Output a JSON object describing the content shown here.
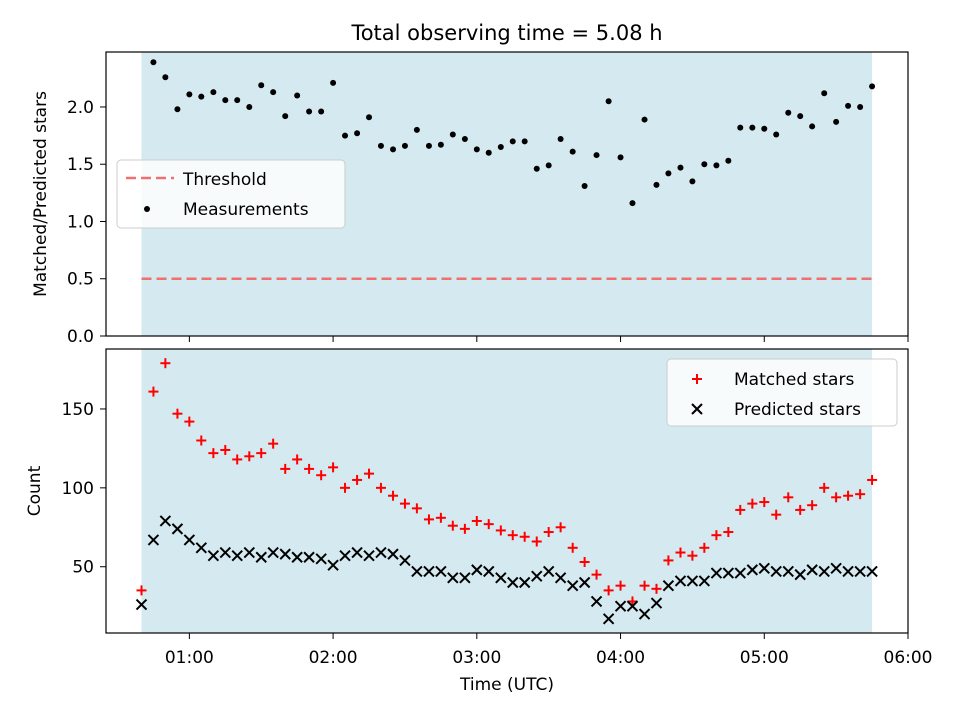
{
  "title": "Total observing time = 5.08 h",
  "colors": {
    "shade": "#d4eaf0",
    "threshold": "#f07070",
    "measurements": "#000000",
    "matched": "#ff0000",
    "predicted": "#000000"
  },
  "chart_data": [
    {
      "type": "scatter",
      "ylabel": "Matched/Predicted stars",
      "xlim": [
        0.42,
        6.0
      ],
      "ylim": [
        0.0,
        2.48
      ],
      "yticks": [
        0.0,
        0.5,
        1.0,
        1.5,
        2.0
      ],
      "ytick_labels": [
        "0.0",
        "0.5",
        "1.0",
        "1.5",
        "2.0"
      ],
      "shaded_span": [
        0.667,
        5.75
      ],
      "threshold": {
        "name": "Threshold",
        "y": 0.5
      },
      "legend": [
        "Threshold",
        "Measurements"
      ],
      "legend_position": "center-left",
      "series": [
        {
          "name": "Measurements",
          "x": [
            0.75,
            0.833,
            0.917,
            1.0,
            1.083,
            1.167,
            1.25,
            1.333,
            1.417,
            1.5,
            1.583,
            1.667,
            1.75,
            1.833,
            1.917,
            2.0,
            2.083,
            2.167,
            2.25,
            2.333,
            2.417,
            2.5,
            2.583,
            2.667,
            2.75,
            2.833,
            2.917,
            3.0,
            3.083,
            3.167,
            3.25,
            3.333,
            3.417,
            3.5,
            3.583,
            3.667,
            3.75,
            3.833,
            3.917,
            4.0,
            4.083,
            4.167,
            4.25,
            4.333,
            4.417,
            4.5,
            4.583,
            4.667,
            4.75,
            4.833,
            4.917,
            5.0,
            5.083,
            5.167,
            5.25,
            5.333,
            5.417,
            5.5,
            5.583,
            5.667,
            5.75
          ],
          "y": [
            2.39,
            2.26,
            1.98,
            2.11,
            2.09,
            2.13,
            2.06,
            2.06,
            2.0,
            2.19,
            2.13,
            1.92,
            2.1,
            1.96,
            1.96,
            2.21,
            1.75,
            1.77,
            1.91,
            1.66,
            1.63,
            1.66,
            1.8,
            1.66,
            1.67,
            1.76,
            1.72,
            1.63,
            1.6,
            1.65,
            1.7,
            1.7,
            1.46,
            1.49,
            1.72,
            1.61,
            1.31,
            1.58,
            2.05,
            1.56,
            1.16,
            1.89,
            1.32,
            1.42,
            1.47,
            1.35,
            1.5,
            1.49,
            1.53,
            1.82,
            1.82,
            1.81,
            1.76,
            1.95,
            1.92,
            1.83,
            2.12,
            1.87,
            2.01,
            2.0,
            2.18
          ]
        }
      ]
    },
    {
      "type": "scatter",
      "xlabel": "Time (UTC)",
      "ylabel": "Count",
      "xlim": [
        0.42,
        6.0
      ],
      "ylim": [
        8,
        188
      ],
      "yticks": [
        50,
        100,
        150
      ],
      "ytick_labels": [
        "50",
        "100",
        "150"
      ],
      "xticks": [
        1,
        2,
        3,
        4,
        5,
        6
      ],
      "xtick_labels": [
        "01:00",
        "02:00",
        "03:00",
        "04:00",
        "05:00",
        "06:00"
      ],
      "shaded_span": [
        0.667,
        5.75
      ],
      "legend": [
        "Matched stars",
        "Predicted stars"
      ],
      "legend_position": "top-right",
      "series": [
        {
          "name": "Matched stars",
          "marker": "plus",
          "x": [
            0.667,
            0.75,
            0.833,
            0.917,
            1.0,
            1.083,
            1.167,
            1.25,
            1.333,
            1.417,
            1.5,
            1.583,
            1.667,
            1.75,
            1.833,
            1.917,
            2.0,
            2.083,
            2.167,
            2.25,
            2.333,
            2.417,
            2.5,
            2.583,
            2.667,
            2.75,
            2.833,
            2.917,
            3.0,
            3.083,
            3.167,
            3.25,
            3.333,
            3.417,
            3.5,
            3.583,
            3.667,
            3.75,
            3.833,
            3.917,
            4.0,
            4.083,
            4.167,
            4.25,
            4.333,
            4.417,
            4.5,
            4.583,
            4.667,
            4.75,
            4.833,
            4.917,
            5.0,
            5.083,
            5.167,
            5.25,
            5.333,
            5.417,
            5.5,
            5.583,
            5.667,
            5.75
          ],
          "y": [
            35,
            161,
            179,
            147,
            142,
            130,
            122,
            124,
            118,
            120,
            122,
            128,
            112,
            118,
            112,
            108,
            113,
            100,
            105,
            109,
            100,
            95,
            90,
            87,
            80,
            81,
            76,
            74,
            79,
            77,
            73,
            70,
            69,
            66,
            72,
            75,
            62,
            53,
            45,
            35,
            38,
            28,
            38,
            36,
            54,
            59,
            57,
            62,
            70,
            72,
            86,
            90,
            91,
            83,
            94,
            86,
            89,
            100,
            94,
            95,
            96,
            105
          ]
        },
        {
          "name": "Predicted stars",
          "marker": "x",
          "x": [
            0.667,
            0.75,
            0.833,
            0.917,
            1.0,
            1.083,
            1.167,
            1.25,
            1.333,
            1.417,
            1.5,
            1.583,
            1.667,
            1.75,
            1.833,
            1.917,
            2.0,
            2.083,
            2.167,
            2.25,
            2.333,
            2.417,
            2.5,
            2.583,
            2.667,
            2.75,
            2.833,
            2.917,
            3.0,
            3.083,
            3.167,
            3.25,
            3.333,
            3.417,
            3.5,
            3.583,
            3.667,
            3.75,
            3.833,
            3.917,
            4.0,
            4.083,
            4.167,
            4.25,
            4.333,
            4.417,
            4.5,
            4.583,
            4.667,
            4.75,
            4.833,
            4.917,
            5.0,
            5.083,
            5.167,
            5.25,
            5.333,
            5.417,
            5.5,
            5.583,
            5.667,
            5.75
          ],
          "y": [
            26,
            67,
            79,
            74,
            67,
            62,
            57,
            59,
            57,
            59,
            56,
            59,
            58,
            56,
            56,
            55,
            51,
            57,
            59,
            57,
            59,
            58,
            54,
            47,
            47,
            47,
            43,
            43,
            48,
            47,
            43,
            40,
            40,
            44,
            47,
            43,
            38,
            40,
            28,
            17,
            25,
            25,
            20,
            27,
            38,
            41,
            41,
            41,
            46,
            46,
            46,
            48,
            49,
            47,
            47,
            45,
            48,
            47,
            49,
            47,
            47,
            47
          ]
        }
      ]
    }
  ]
}
